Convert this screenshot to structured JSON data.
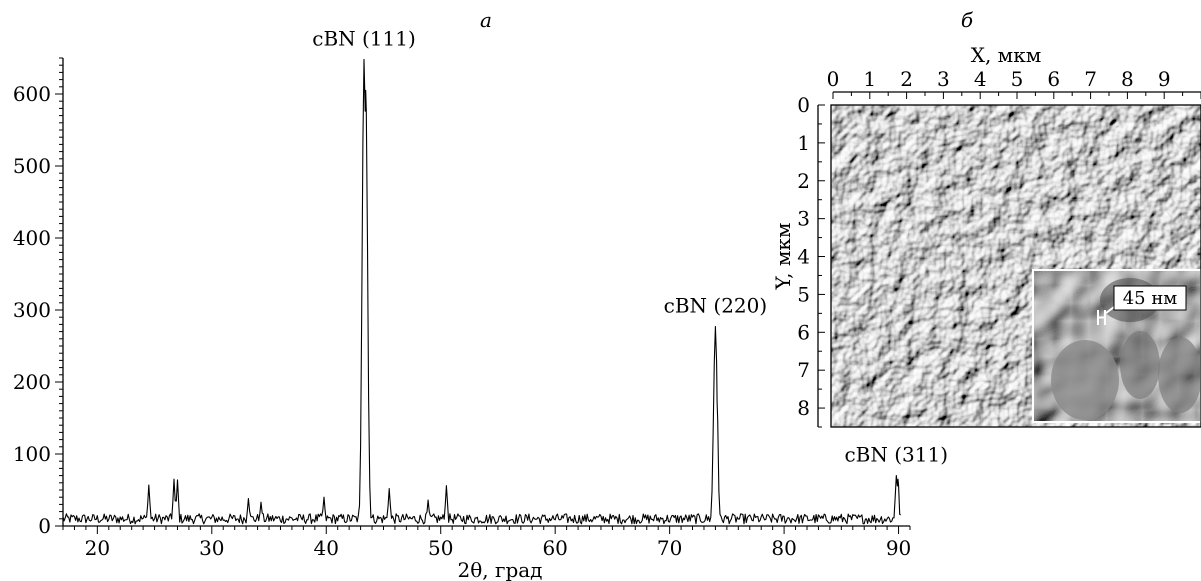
{
  "panels": {
    "a_label": "а",
    "b_label": "б"
  },
  "chart_data": [
    {
      "type": "line",
      "panel": "а",
      "xlabel": "2θ, град",
      "ylabel": "",
      "xlim": [
        17,
        91
      ],
      "ylim": [
        0,
        650
      ],
      "xticks": [
        20,
        30,
        40,
        50,
        60,
        70,
        80,
        90
      ],
      "yticks": [
        0,
        100,
        200,
        300,
        400,
        500,
        600
      ],
      "grid": false,
      "background_level": 10,
      "peaks": [
        {
          "x": 24.5,
          "y": 57
        },
        {
          "x": 26.7,
          "y": 65
        },
        {
          "x": 27.0,
          "y": 64
        },
        {
          "x": 33.2,
          "y": 38
        },
        {
          "x": 34.3,
          "y": 33
        },
        {
          "x": 39.8,
          "y": 40
        },
        {
          "x": 43.3,
          "y": 648
        },
        {
          "x": 43.45,
          "y": 605
        },
        {
          "x": 45.5,
          "y": 52
        },
        {
          "x": 48.9,
          "y": 36
        },
        {
          "x": 50.5,
          "y": 56
        },
        {
          "x": 74.0,
          "y": 277
        },
        {
          "x": 74.15,
          "y": 172
        },
        {
          "x": 89.8,
          "y": 70
        },
        {
          "x": 89.95,
          "y": 65
        }
      ],
      "annotations": [
        {
          "text": "cBN (111)",
          "x": 43.3,
          "y": 648
        },
        {
          "text": "cBN (220)",
          "x": 74.0,
          "y": 277
        },
        {
          "text": "cBN (311)",
          "x": 89.8,
          "y": 70
        }
      ]
    },
    {
      "type": "heatmap",
      "panel": "б",
      "xlabel": "X, мкм",
      "ylabel": "Y, мкм",
      "xlim": [
        0,
        10
      ],
      "ylim": [
        0,
        8.5
      ],
      "xticks": [
        0,
        1,
        2,
        3,
        4,
        5,
        6,
        7,
        8,
        9
      ],
      "yticks": [
        0,
        1,
        2,
        3,
        4,
        5,
        6,
        7,
        8
      ],
      "inset_label": "45 нм",
      "colors": [
        "#000000",
        "#ffffff",
        "#888888"
      ]
    }
  ]
}
